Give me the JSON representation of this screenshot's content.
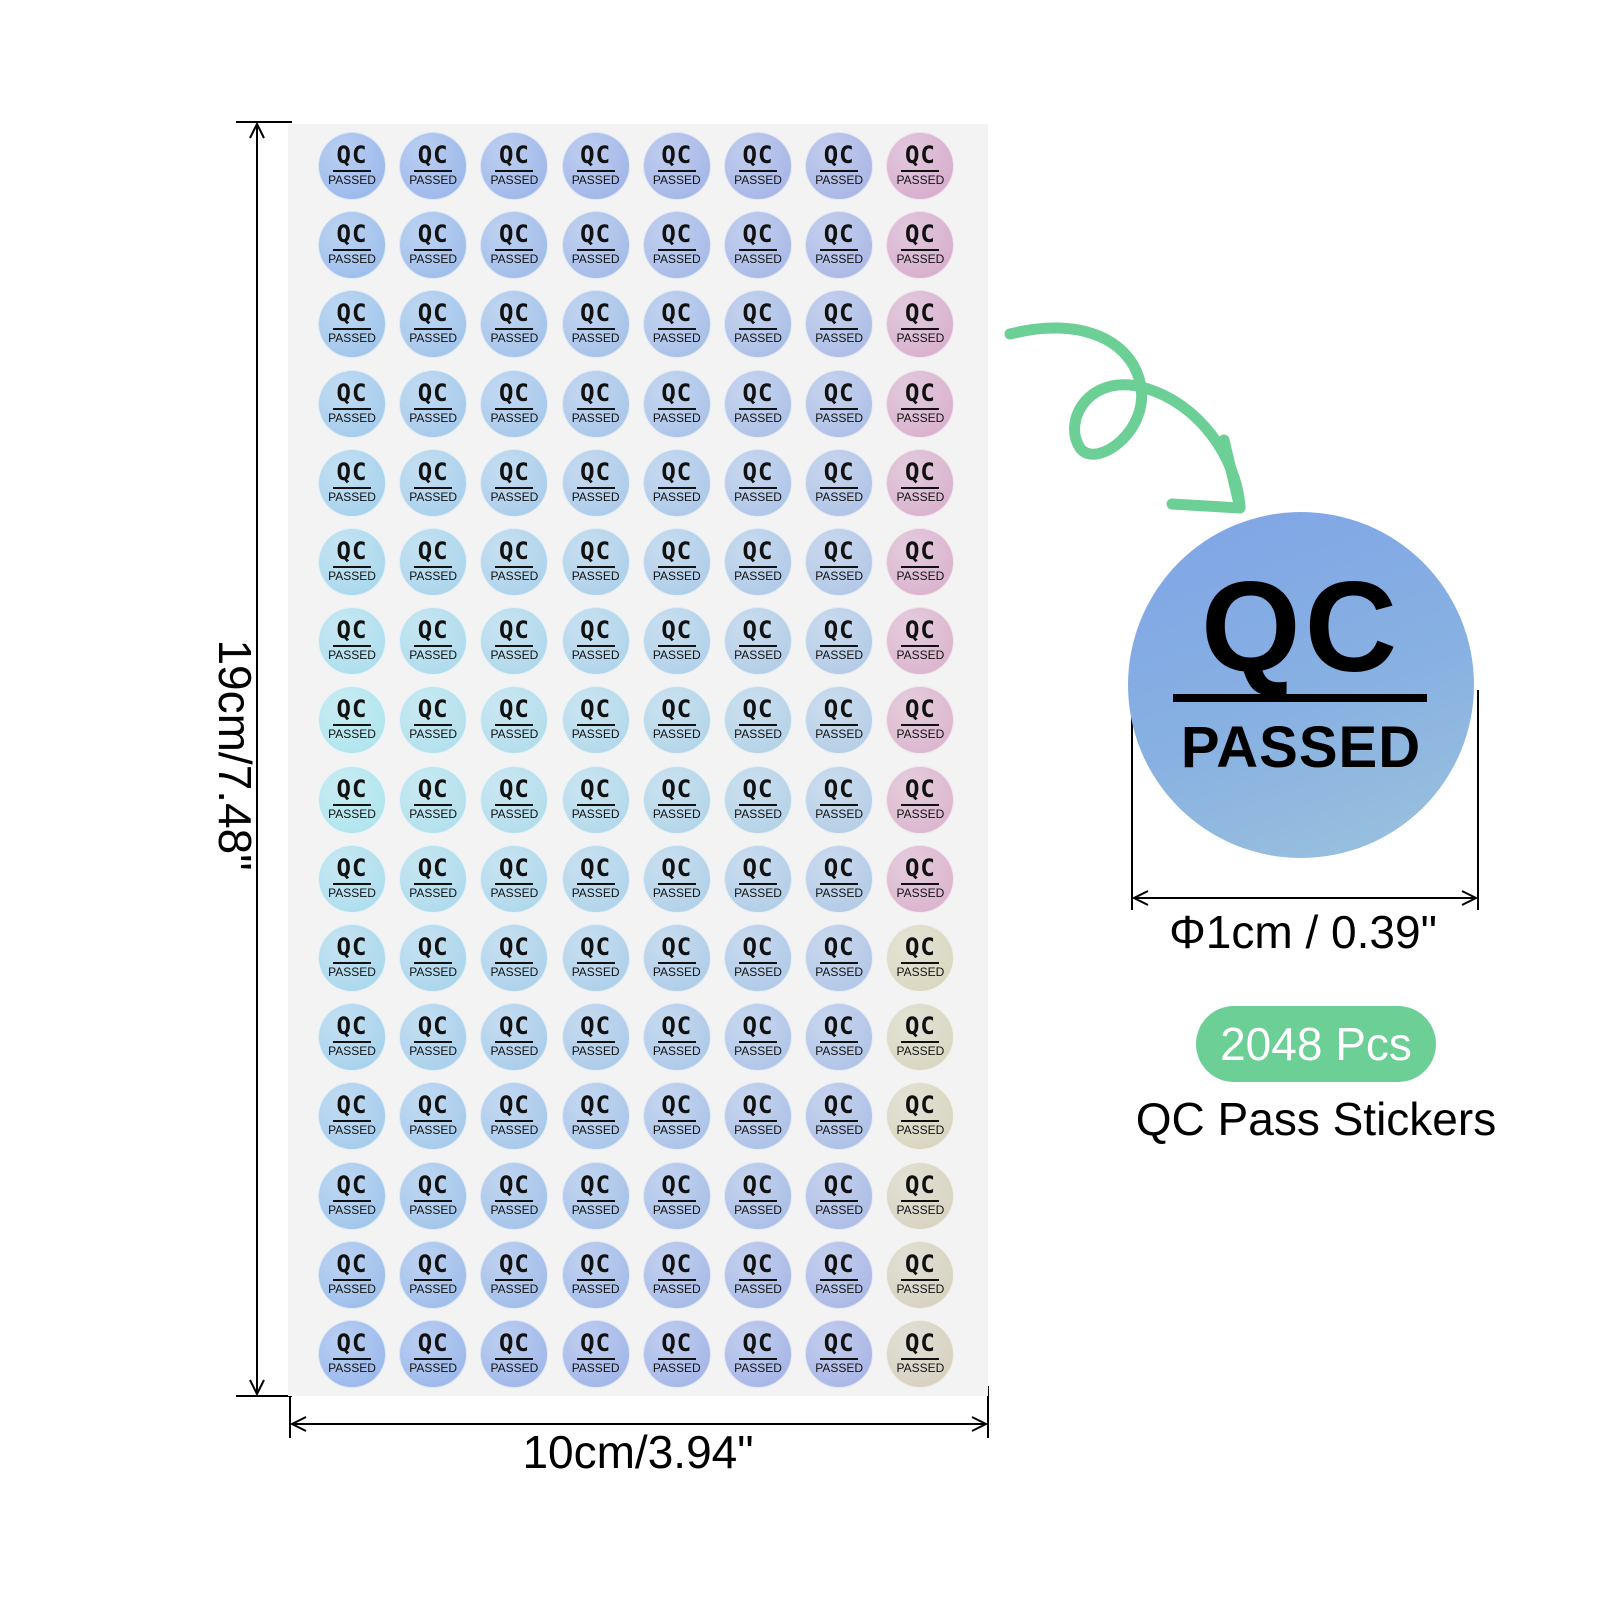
{
  "dimensions": {
    "height": "19cm/7.48\"",
    "width": "10cm/3.94\"",
    "diameter": "Φ1cm / 0.39\""
  },
  "sticker": {
    "top_text": "QC",
    "bottom_text": "PASSED"
  },
  "sheet": {
    "rows": 16,
    "columns": 8
  },
  "badge": {
    "count": "2048 Pcs"
  },
  "product": {
    "title": "QC Pass Stickers"
  },
  "colors": {
    "badge": "#6ccf95",
    "arrow": "#6ccf95",
    "big_sticker_start": "#7fa4e6",
    "big_sticker_end": "#9cc3dc"
  },
  "icons": {
    "curly_arrow": "curly-arrow-icon"
  }
}
